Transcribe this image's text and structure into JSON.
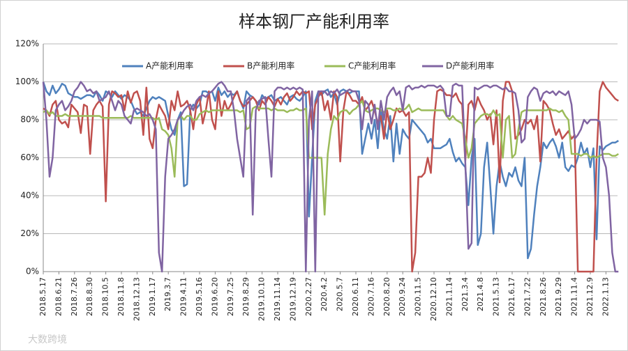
{
  "chart_data": {
    "type": "line",
    "title": "样本钢厂产能利用率",
    "watermark": "大数跨境",
    "categories": [
      "2018.5.17",
      null,
      null,
      null,
      null,
      "2018.6.21",
      null,
      null,
      null,
      null,
      "2018.7.26",
      null,
      null,
      null,
      null,
      "2018.8.30",
      null,
      null,
      null,
      null,
      "2018.10.5",
      null,
      null,
      null,
      null,
      "2018.11.8",
      null,
      null,
      null,
      null,
      "2018.12.13",
      null,
      null,
      null,
      null,
      "2019.1.17",
      null,
      null,
      null,
      null,
      "2019.3.7",
      null,
      null,
      null,
      null,
      "2019.4.11",
      null,
      null,
      null,
      null,
      "2019.5.16",
      null,
      null,
      null,
      null,
      "2019.6.20",
      null,
      null,
      null,
      null,
      "2019.7.25",
      null,
      null,
      null,
      null,
      "2019.8.29",
      null,
      null,
      null,
      null,
      "2019.10.10",
      null,
      null,
      null,
      null,
      "2019.11.14",
      null,
      null,
      null,
      null,
      "2019.12.19",
      null,
      null,
      null,
      null,
      "2020.2.27",
      null,
      null,
      null,
      null,
      "2020.4.2",
      null,
      null,
      null,
      null,
      "2020.5.7",
      null,
      null,
      null,
      null,
      "2020.6.11",
      null,
      null,
      null,
      null,
      "2020.7.16",
      null,
      null,
      null,
      null,
      "2020.8.20",
      null,
      null,
      null,
      null,
      "2020.9.24",
      null,
      null,
      null,
      null,
      "2020.11.5",
      null,
      null,
      null,
      null,
      "2020.12.10",
      null,
      null,
      null,
      null,
      "2021.1.14",
      null,
      null,
      null,
      null,
      "2021.3.4",
      null,
      null,
      null,
      null,
      "2021.4.8",
      null,
      null,
      null,
      null,
      "2021.5.13",
      null,
      null,
      null,
      null,
      "2021.6.17",
      null,
      null,
      null,
      null,
      "2021.7.22",
      null,
      null,
      null,
      null,
      "2021.8.26",
      null,
      null,
      null,
      null,
      "2021.9.29",
      null,
      null,
      null,
      null,
      "2021.11.4",
      null,
      null,
      null,
      null,
      "2021.12.9",
      null,
      null,
      null,
      null,
      "2022.1.13",
      null,
      null,
      null,
      null
    ],
    "series": [
      {
        "name": "A产能利用率",
        "color": "#4f81bd",
        "values": [
          100,
          95,
          93,
          98,
          94,
          96,
          99,
          98,
          94,
          93,
          92,
          92,
          91,
          92,
          93,
          93,
          92,
          95,
          93,
          90,
          95,
          94,
          92,
          95,
          93,
          91,
          93,
          92,
          90,
          86,
          83,
          84,
          82,
          86,
          90,
          92,
          91,
          92,
          91,
          90,
          82,
          75,
          72,
          80,
          84,
          45,
          46,
          85,
          88,
          86,
          88,
          95,
          95,
          94,
          95,
          90,
          97,
          93,
          95,
          92,
          94,
          93,
          95,
          90,
          86,
          95,
          93,
          92,
          90,
          88,
          93,
          91,
          92,
          93,
          90,
          91,
          92,
          90,
          88,
          92,
          93,
          91,
          90,
          92,
          95,
          29,
          60,
          90,
          95,
          93,
          95,
          96,
          92,
          94,
          88,
          95,
          96,
          95,
          94,
          95,
          95,
          95,
          62,
          70,
          78,
          70,
          80,
          65,
          85,
          75,
          70,
          82,
          58,
          78,
          62,
          75,
          72,
          70,
          80,
          78,
          76,
          74,
          72,
          68,
          70,
          65,
          65,
          65,
          66,
          67,
          70,
          63,
          58,
          60,
          57,
          55,
          35,
          60,
          70,
          14,
          20,
          55,
          68,
          45,
          20,
          45,
          58,
          50,
          45,
          52,
          50,
          55,
          48,
          45,
          60,
          7,
          12,
          30,
          45,
          55,
          68,
          65,
          68,
          70,
          66,
          60,
          68,
          55,
          53,
          56,
          55,
          60,
          68,
          62,
          65,
          55,
          65,
          17,
          66,
          64,
          66,
          67,
          68,
          68,
          69
        ]
      },
      {
        "name": "B产能利用率",
        "color": "#c0504d",
        "values": [
          86,
          85,
          82,
          88,
          90,
          80,
          78,
          79,
          76,
          88,
          86,
          84,
          73,
          88,
          87,
          62,
          85,
          88,
          90,
          87,
          37,
          88,
          95,
          94,
          92,
          93,
          85,
          95,
          89,
          94,
          95,
          90,
          72,
          97,
          70,
          65,
          80,
          88,
          85,
          82,
          75,
          90,
          85,
          95,
          87,
          88,
          90,
          85,
          75,
          88,
          92,
          78,
          85,
          95,
          80,
          75,
          95,
          82,
          90,
          85,
          88,
          92,
          95,
          90,
          87,
          88,
          90,
          92,
          90,
          85,
          90,
          88,
          92,
          90,
          87,
          91,
          88,
          92,
          94,
          90,
          92,
          95,
          93,
          95,
          94,
          95,
          75,
          88,
          92,
          95,
          85,
          90,
          80,
          95,
          92,
          58,
          85,
          95,
          93,
          90,
          90,
          88,
          92,
          85,
          87,
          90,
          85,
          78,
          82,
          70,
          85,
          75,
          80,
          86,
          84,
          85,
          82,
          84,
          0,
          10,
          50,
          50,
          52,
          60,
          52,
          80,
          95,
          96,
          95,
          93,
          93,
          92,
          94,
          90,
          88,
          58,
          88,
          90,
          85,
          92,
          88,
          85,
          80,
          83,
          67,
          85,
          47,
          90,
          100,
          100,
          95,
          70,
          72,
          75,
          80,
          78,
          80,
          75,
          82,
          58,
          90,
          88,
          85,
          78,
          72,
          75,
          70,
          72,
          74,
          70,
          72,
          0,
          0,
          0,
          0,
          0,
          0,
          60,
          95,
          100,
          97,
          95,
          93,
          91,
          90
        ]
      },
      {
        "name": "C产能利用率",
        "color": "#9bbb59",
        "values": [
          84,
          85,
          83,
          84,
          82,
          82,
          82,
          83,
          82,
          82,
          82,
          82,
          82,
          82,
          82,
          82,
          82,
          82,
          82,
          81,
          81,
          81,
          81,
          81,
          81,
          81,
          81,
          81,
          82,
          81,
          81,
          81,
          81,
          81,
          81,
          81,
          80,
          81,
          75,
          74,
          72,
          65,
          50,
          80,
          82,
          80,
          82,
          82,
          80,
          80,
          83,
          84,
          85,
          84,
          85,
          85,
          85,
          85,
          85,
          85,
          85,
          85,
          85,
          84,
          85,
          75,
          76,
          86,
          87,
          86,
          86,
          86,
          86,
          85,
          86,
          85,
          85,
          85,
          84,
          85,
          85,
          86,
          85,
          85,
          86,
          60,
          60,
          60,
          60,
          60,
          30,
          62,
          75,
          82,
          80,
          84,
          85,
          85,
          83,
          85,
          86,
          88,
          90,
          85,
          84,
          85,
          86,
          86,
          85,
          84,
          86,
          86,
          85,
          85,
          86,
          85,
          86,
          88,
          84,
          85,
          86,
          85,
          85,
          85,
          85,
          85,
          85,
          85,
          85,
          82,
          80,
          82,
          80,
          79,
          78,
          70,
          60,
          65,
          78,
          80,
          82,
          83,
          83,
          82,
          85,
          82,
          83,
          60,
          80,
          82,
          60,
          62,
          75,
          84,
          85,
          85,
          85,
          85,
          85,
          85,
          85,
          85,
          86,
          85,
          85,
          84,
          85,
          82,
          80,
          62,
          62,
          62,
          61,
          62,
          62,
          60,
          61,
          60,
          61,
          62,
          62,
          62,
          61,
          61,
          62
        ]
      },
      {
        "name": "D产能利用率",
        "color": "#8064a2",
        "values": [
          100,
          80,
          50,
          60,
          85,
          88,
          90,
          85,
          87,
          90,
          95,
          97,
          100,
          98,
          95,
          96,
          94,
          95,
          90,
          91,
          92,
          95,
          90,
          85,
          90,
          88,
          82,
          80,
          78,
          85,
          86,
          85,
          84,
          82,
          83,
          80,
          75,
          10,
          0,
          50,
          70,
          72,
          75,
          80,
          82,
          85,
          87,
          88,
          85,
          90,
          92,
          93,
          92,
          94,
          95,
          97,
          99,
          100,
          98,
          95,
          95,
          85,
          70,
          60,
          50,
          90,
          92,
          30,
          85,
          90,
          91,
          92,
          70,
          50,
          95,
          97,
          97,
          96,
          97,
          96,
          97,
          96,
          97,
          96,
          0,
          80,
          95,
          0,
          95,
          95,
          95,
          93,
          95,
          94,
          96,
          93,
          94,
          95,
          96,
          95,
          95,
          90,
          75,
          90,
          88,
          78,
          88,
          75,
          90,
          80,
          92,
          95,
          97,
          93,
          95,
          85,
          97,
          98,
          96,
          97,
          97,
          98,
          97,
          98,
          98,
          98,
          97,
          98,
          96,
          82,
          82,
          98,
          99,
          98,
          98,
          58,
          12,
          15,
          97,
          96,
          97,
          98,
          98,
          97,
          98,
          98,
          97,
          96,
          97,
          95,
          95,
          94,
          85,
          68,
          70,
          92,
          95,
          97,
          96,
          90,
          94,
          95,
          94,
          95,
          93,
          95,
          94,
          93,
          95,
          88,
          70,
          72,
          75,
          80,
          78,
          80,
          80,
          80,
          79,
          60,
          55,
          40,
          10,
          0,
          0
        ]
      }
    ],
    "ylim": [
      0,
      120
    ],
    "yticks": [
      {
        "value": 0,
        "label": "0%"
      },
      {
        "value": 20,
        "label": "20%"
      },
      {
        "value": 40,
        "label": "40%"
      },
      {
        "value": 60,
        "label": "60%"
      },
      {
        "value": 80,
        "label": "80%"
      },
      {
        "value": 100,
        "label": "100%"
      },
      {
        "value": 120,
        "label": "120%"
      }
    ],
    "grid": true,
    "legend": "top"
  }
}
